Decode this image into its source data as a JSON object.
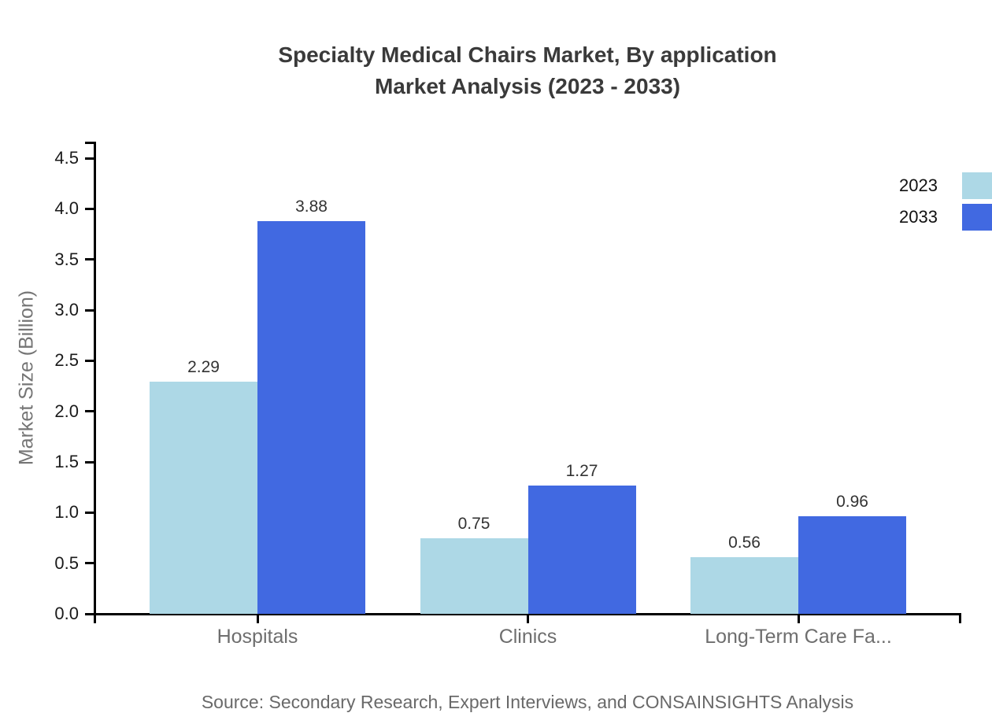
{
  "title": {
    "line1": "Specialty Medical Chairs Market, By application",
    "line2": "Market Analysis (2023 - 2033)"
  },
  "source": "Source: Secondary Research, Expert Interviews, and CONSAINSIGHTS Analysis",
  "chart_data": {
    "type": "bar",
    "title": "Specialty Medical Chairs Market, By application Market Analysis (2023 - 2033)",
    "categories": [
      "Hospitals",
      "Clinics",
      "Long-Term Care Fa..."
    ],
    "series": [
      {
        "name": "2023",
        "color": "#add8e6",
        "values": [
          2.29,
          0.75,
          0.56
        ]
      },
      {
        "name": "2033",
        "color": "#4169e1",
        "values": [
          3.88,
          1.27,
          0.96
        ]
      }
    ],
    "xlabel": "",
    "ylabel": "Market Size (Billion)",
    "ylim": [
      0,
      4.5
    ],
    "ytick_step": 0.5,
    "ytick_labels": [
      "0.0",
      "0.5",
      "1.0",
      "1.5",
      "2.0",
      "2.5",
      "3.0",
      "3.5",
      "4.0",
      "4.5"
    ],
    "grid": false,
    "legend_position": "top-right",
    "value_labels_shown": true
  },
  "colors": {
    "series_2023": "#add8e6",
    "series_2033": "#4169e1",
    "axis": "#000000",
    "title_text": "#3a3a3a",
    "muted_text": "#6e6e6e",
    "tick_text": "#1a1a1a"
  }
}
